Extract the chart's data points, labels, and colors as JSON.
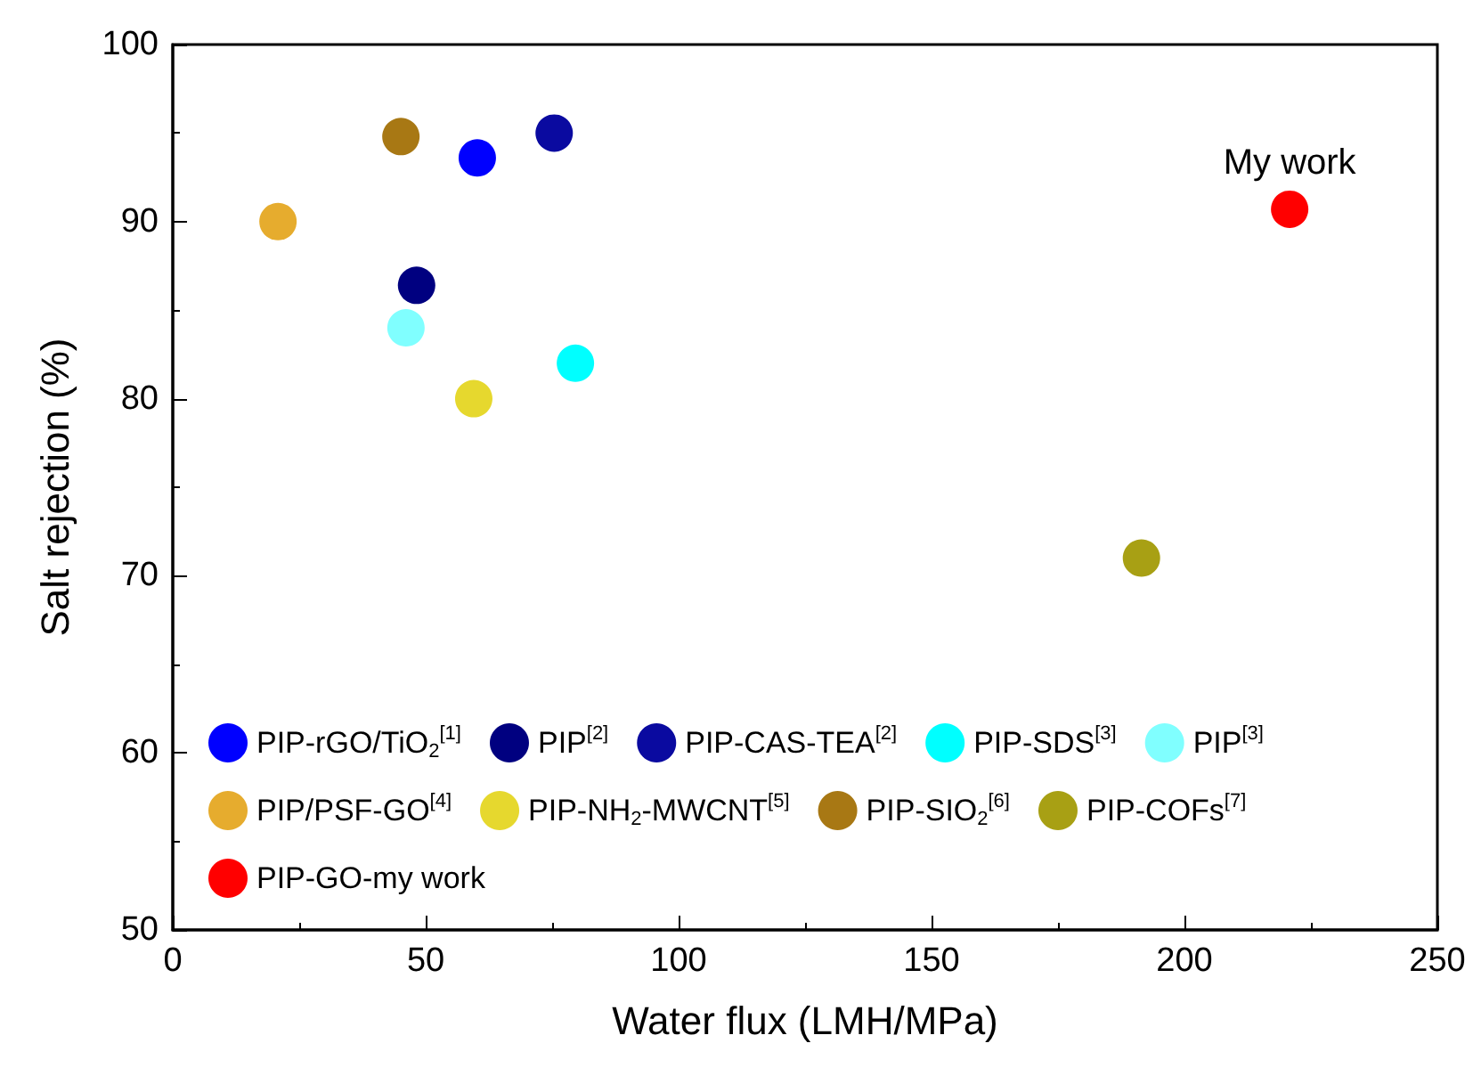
{
  "chart_data": {
    "type": "scatter",
    "xlabel": "Water flux (LMH/MPa)",
    "ylabel": "Salt rejection (%)",
    "xlim": [
      0,
      250
    ],
    "xticks": [
      0,
      50,
      100,
      150,
      200,
      250
    ],
    "ylim": [
      50,
      100
    ],
    "yticks": [
      50,
      60,
      70,
      80,
      90,
      100
    ],
    "grid": false,
    "legend": "bottom left",
    "marker": "circle",
    "annotations": [
      {
        "text": "My work",
        "x": 220.8,
        "y": 90.7
      }
    ],
    "series": [
      {
        "name": "PIP-rGO/TiO$_{2}$$^{[1]}$",
        "color": "#0000ff",
        "x": [
          60.2
        ],
        "values": [
          93.6
        ]
      },
      {
        "name": "PIP$^{[2]}$",
        "color": "#000080",
        "x": [
          48.2
        ],
        "values": [
          86.4
        ]
      },
      {
        "name": "PIP-CAS-TEA$^{[2]}$",
        "color": "#0a0aa0",
        "x": [
          75.4
        ],
        "values": [
          95.0
        ]
      },
      {
        "name": "PIP-SDS$^{[3]}$",
        "color": "#00ffff",
        "x": [
          79.6
        ],
        "values": [
          82.0
        ]
      },
      {
        "name": "PIP$^{[3]}$",
        "color": "#80ffff",
        "x": [
          46.1
        ],
        "values": [
          84.0
        ]
      },
      {
        "name": "PIP/PSF-GO$^{[4]}$",
        "color": "#e6ac2e",
        "x": [
          20.8
        ],
        "values": [
          90.0
        ]
      },
      {
        "name": "PIP-NH$_{2}$-MWCNT$^{[5]}$",
        "color": "#e6d82e",
        "x": [
          59.5
        ],
        "values": [
          80.0
        ]
      },
      {
        "name": "PIP-SIO$_{2}$$^{[6]}$",
        "color": "#a87814",
        "x": [
          45.1
        ],
        "values": [
          94.8
        ]
      },
      {
        "name": "PIP-COFs$^{[7]}$",
        "color": "#a8a014",
        "x": [
          191.5
        ],
        "values": [
          71.0
        ]
      },
      {
        "name": "PIP-GO-my work",
        "color": "#ff0000",
        "x": [
          220.8
        ],
        "values": [
          90.7
        ]
      }
    ]
  }
}
